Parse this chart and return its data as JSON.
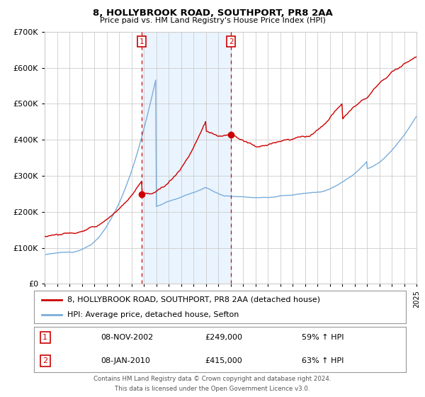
{
  "title": "8, HOLLYBROOK ROAD, SOUTHPORT, PR8 2AA",
  "subtitle": "Price paid vs. HM Land Registry's House Price Index (HPI)",
  "legend_line1": "8, HOLLYBROOK ROAD, SOUTHPORT, PR8 2AA (detached house)",
  "legend_line2": "HPI: Average price, detached house, Sefton",
  "sale1_date": "08-NOV-2002",
  "sale1_price": "£249,000",
  "sale1_hpi": "59% ↑ HPI",
  "sale2_date": "08-JAN-2010",
  "sale2_price": "£415,000",
  "sale2_hpi": "63% ↑ HPI",
  "footer1": "Contains HM Land Registry data © Crown copyright and database right 2024.",
  "footer2": "This data is licensed under the Open Government Licence v3.0.",
  "red_color": "#cc0000",
  "blue_color": "#7aaddb",
  "bg_shade": "#ddeeff",
  "grid_color": "#cccccc",
  "year_start": 1995,
  "year_end": 2025,
  "ylim_max": 700000,
  "sale1_year": 2002.85,
  "sale2_year": 2010.04,
  "sale1_val_red": 249000,
  "sale2_val_red": 415000
}
